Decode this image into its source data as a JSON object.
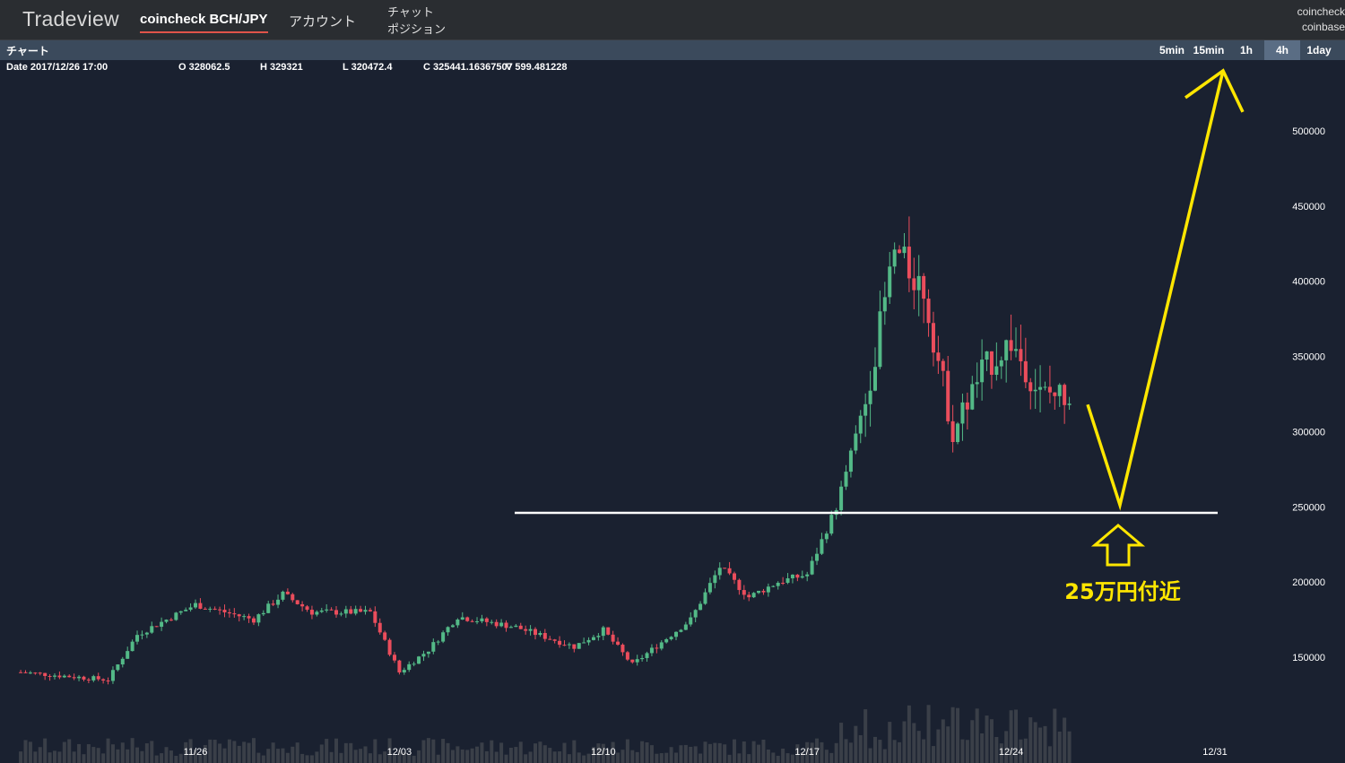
{
  "header": {
    "brand": "Tradeview",
    "tab_pair": "coincheck BCH/JPY",
    "tab_account": "アカウント",
    "menu_chat": "チャット",
    "menu_position": "ポジション",
    "exchange_1": "coincheck",
    "exchange_2": "coinbase"
  },
  "chart_bar": {
    "label": "チャート",
    "timeframes": [
      "5min",
      "15min",
      "1h",
      "4h",
      "1day"
    ],
    "active_timeframe": "4h"
  },
  "ohlc": {
    "date": "Date 2017/12/26 17:00",
    "open": "O 328062.5",
    "high": "H 329321",
    "low": "L 320472.4",
    "close": "C 325441.16367507",
    "volume": "V 599.481228"
  },
  "annotation": {
    "text": "25万円付近"
  },
  "colors": {
    "background": "#1a2130",
    "up": "#53b987",
    "down": "#eb4d5c",
    "annotation": "#ffe600",
    "support_line": "#ffffff"
  },
  "chart_data": {
    "type": "candlestick",
    "timeframe": "4h",
    "x_ticks": [
      "11/26",
      "12/03",
      "12/10",
      "12/17",
      "12/24",
      "12/31"
    ],
    "y_ticks": [
      150000,
      200000,
      250000,
      300000,
      350000,
      400000,
      450000,
      500000
    ],
    "support_level": 246000,
    "annotation_arrow": {
      "from_price": 318000,
      "bottom_price": 250000,
      "target_price": 540000
    },
    "anchors": [
      {
        "date": "11/20",
        "price": 140000
      },
      {
        "date": "11/23",
        "price": 135000
      },
      {
        "date": "11/24",
        "price": 165000
      },
      {
        "date": "11/26",
        "price": 185000
      },
      {
        "date": "11/28",
        "price": 175000
      },
      {
        "date": "11/29",
        "price": 192000
      },
      {
        "date": "11/30",
        "price": 180000
      },
      {
        "date": "12/02",
        "price": 180000
      },
      {
        "date": "12/03",
        "price": 140000
      },
      {
        "date": "12/04",
        "price": 155000
      },
      {
        "date": "12/05",
        "price": 177000
      },
      {
        "date": "12/07",
        "price": 170000
      },
      {
        "date": "12/09",
        "price": 157000
      },
      {
        "date": "12/10",
        "price": 168000
      },
      {
        "date": "12/11",
        "price": 145000
      },
      {
        "date": "12/13",
        "price": 175000
      },
      {
        "date": "12/14",
        "price": 210000
      },
      {
        "date": "12/15",
        "price": 190000
      },
      {
        "date": "12/16",
        "price": 200000
      },
      {
        "date": "12/17",
        "price": 205000
      },
      {
        "date": "12/18",
        "price": 250000
      },
      {
        "date": "12/19",
        "price": 320000
      },
      {
        "date": "12/20",
        "price": 420000
      },
      {
        "date": "12/21",
        "price": 395000
      },
      {
        "date": "12/22",
        "price": 300000
      },
      {
        "date": "12/23",
        "price": 340000
      },
      {
        "date": "12/24",
        "price": 360000
      },
      {
        "date": "12/25",
        "price": 325000
      },
      {
        "date": "12/26",
        "price": 325441
      }
    ]
  }
}
